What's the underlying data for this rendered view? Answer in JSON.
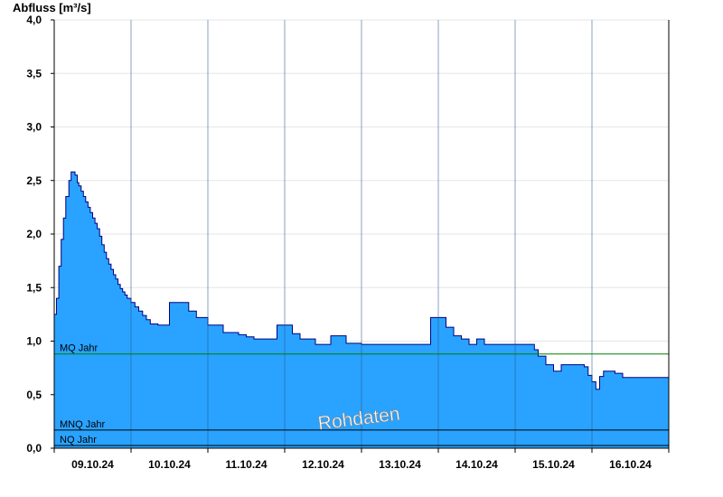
{
  "chart_data": {
    "type": "area",
    "ylabel": "Abfluss [m³/s]",
    "ylim": [
      0,
      4.0
    ],
    "y_ticks": [
      "0,0",
      "0,5",
      "1,0",
      "1,5",
      "2,0",
      "2,5",
      "3,0",
      "3,5",
      "4,0"
    ],
    "x_range_days": [
      0,
      8
    ],
    "x_ticks": [
      "09.10.24",
      "10.10.24",
      "11.10.24",
      "12.10.24",
      "13.10.24",
      "14.10.24",
      "15.10.24",
      "16.10.24"
    ],
    "grid": true,
    "watermark": "Rohdaten",
    "reference_lines": [
      {
        "label": "MQ Jahr",
        "value": 0.88,
        "color": "#008000"
      },
      {
        "label": "MNQ Jahr",
        "value": 0.17,
        "color": "#000000"
      },
      {
        "label": "NQ Jahr",
        "value": 0.025,
        "color": "#000000"
      }
    ],
    "series": [
      {
        "color": "#29a3ff",
        "line_color": "#000080",
        "x": [
          0.0,
          0.03,
          0.06,
          0.09,
          0.12,
          0.15,
          0.19,
          0.22,
          0.27,
          0.3,
          0.32,
          0.35,
          0.38,
          0.41,
          0.44,
          0.47,
          0.5,
          0.53,
          0.56,
          0.59,
          0.62,
          0.65,
          0.68,
          0.71,
          0.74,
          0.77,
          0.8,
          0.83,
          0.86,
          0.89,
          0.92,
          0.95,
          1.0,
          1.05,
          1.1,
          1.15,
          1.2,
          1.25,
          1.35,
          1.5,
          1.75,
          1.85,
          2.0,
          2.2,
          2.4,
          2.5,
          2.6,
          2.9,
          3.1,
          3.2,
          3.4,
          3.6,
          3.8,
          4.0,
          4.2,
          4.4,
          4.6,
          4.9,
          5.1,
          5.2,
          5.3,
          5.4,
          5.5,
          5.6,
          5.8,
          5.95,
          6.0,
          6.15,
          6.25,
          6.3,
          6.4,
          6.5,
          6.6,
          6.7,
          6.8,
          6.9,
          6.95,
          7.0,
          7.05,
          7.1,
          7.15,
          7.2,
          7.3,
          7.4,
          7.5,
          7.6,
          7.7,
          7.8,
          7.9,
          8.0
        ],
        "values": [
          1.25,
          1.4,
          1.7,
          1.95,
          2.15,
          2.35,
          2.5,
          2.58,
          2.55,
          2.48,
          2.45,
          2.4,
          2.35,
          2.3,
          2.25,
          2.2,
          2.15,
          2.1,
          2.05,
          1.98,
          1.9,
          1.83,
          1.77,
          1.72,
          1.67,
          1.62,
          1.58,
          1.53,
          1.49,
          1.46,
          1.43,
          1.4,
          1.36,
          1.32,
          1.28,
          1.24,
          1.2,
          1.16,
          1.15,
          1.36,
          1.28,
          1.22,
          1.15,
          1.08,
          1.06,
          1.04,
          1.02,
          1.15,
          1.07,
          1.02,
          0.97,
          1.05,
          0.98,
          0.97,
          0.97,
          0.97,
          0.97,
          1.22,
          1.13,
          1.05,
          1.02,
          0.97,
          1.02,
          0.97,
          0.97,
          0.97,
          0.97,
          0.97,
          0.92,
          0.86,
          0.78,
          0.72,
          0.78,
          0.78,
          0.78,
          0.76,
          0.68,
          0.62,
          0.55,
          0.67,
          0.72,
          0.72,
          0.7,
          0.66,
          0.66,
          0.66,
          0.66,
          0.66,
          0.66,
          0.72
        ]
      }
    ]
  }
}
